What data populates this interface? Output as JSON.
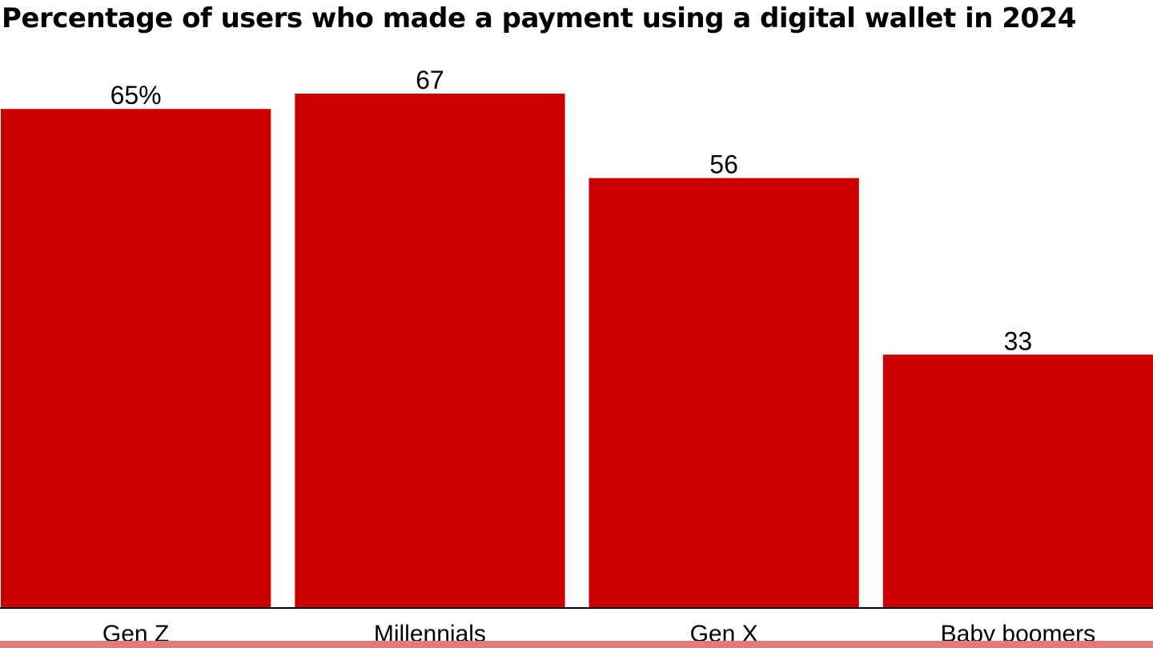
{
  "chart_data": {
    "type": "bar",
    "title": "Percentage of users who made a payment using a digital wallet in 2024",
    "categories": [
      "Gen Z",
      "Millennials",
      "Gen X",
      "Baby boomers"
    ],
    "values": [
      65,
      67,
      56,
      33
    ],
    "data_labels": [
      "65%",
      "67",
      "56",
      "33"
    ],
    "xlabel": "",
    "ylabel": "",
    "ylim": [
      0,
      67
    ],
    "grid": false,
    "legend": "none",
    "colors": {
      "bar": "#cc0000",
      "axis": "#000000",
      "footer_strip": "#e07b7b"
    }
  }
}
